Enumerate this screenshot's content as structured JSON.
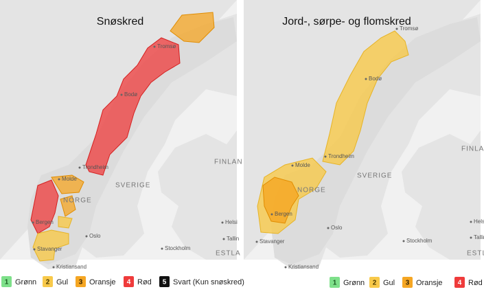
{
  "maps": [
    {
      "title": "Snøskred",
      "place_labels": [
        "Tromsø",
        "Bodø",
        "Trondheim",
        "Molde",
        "NORGE",
        "Bergen",
        "Oslo",
        "Stavanger",
        "Kristiansand",
        "SVERIGE",
        "FINLAN",
        "Stockholm",
        "Helsi",
        "Tallin",
        "ESTLA"
      ]
    },
    {
      "title": "Jord-, sørpe- og flomskred",
      "place_labels": [
        "Tromsø",
        "Bodø",
        "Trondheim",
        "Molde",
        "NORGE",
        "Bergen",
        "Oslo",
        "Stavanger",
        "Kristiansand",
        "SVERIGE",
        "FINLA",
        "Stockholm",
        "Helsi",
        "Tallin",
        "ESTLA"
      ]
    }
  ],
  "legends": [
    {
      "items": [
        {
          "number": "1",
          "label": "Grønn"
        },
        {
          "number": "2",
          "label": "Gul"
        },
        {
          "number": "3",
          "label": "Oransje"
        },
        {
          "number": "4",
          "label": "Rød"
        },
        {
          "number": "5",
          "label": "Svart (Kun snøskred)"
        }
      ]
    },
    {
      "items": [
        {
          "number": "1",
          "label": "Grønn"
        },
        {
          "number": "2",
          "label": "Gul"
        },
        {
          "number": "3",
          "label": "Oransje"
        },
        {
          "number": "4",
          "label": "Rød"
        }
      ]
    }
  ]
}
